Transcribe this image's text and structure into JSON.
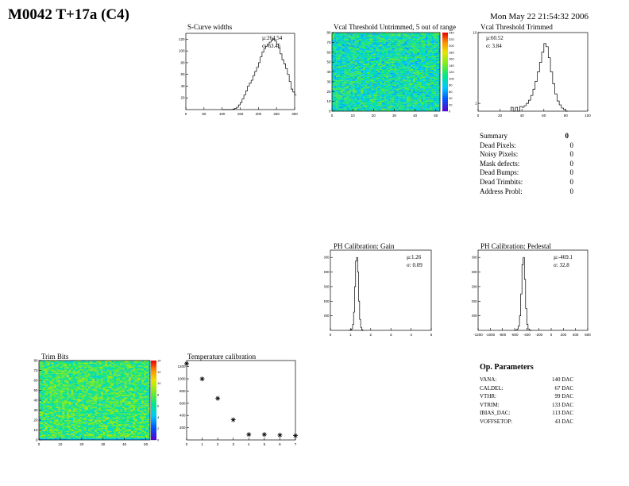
{
  "page": {
    "title": "M0042 T+17a (C4)",
    "datetime": "Mon May 22 21:54:32 2006"
  },
  "chart_data": [
    {
      "type": "area",
      "id": "scurve",
      "title": "S-Curve widths",
      "stats": {
        "mean": "µ:264.54",
        "sigma": "σ: 63.45"
      },
      "xlim": [
        0,
        300
      ],
      "ylim": [
        0,
        130
      ],
      "xticks": [
        0,
        50,
        100,
        150,
        200,
        250,
        300
      ],
      "yticks": [
        20,
        40,
        60,
        80,
        100,
        120
      ],
      "x": [
        100,
        105,
        110,
        115,
        120,
        125,
        130,
        135,
        140,
        145,
        150,
        155,
        160,
        165,
        170,
        175,
        180,
        185,
        190,
        195,
        200,
        205,
        210,
        215,
        220,
        225,
        230,
        235,
        240,
        245,
        250,
        255,
        260,
        265,
        270,
        275,
        280,
        285,
        290,
        295,
        300
      ],
      "values": [
        0,
        0,
        0,
        0,
        0,
        0,
        1,
        2,
        4,
        8,
        12,
        18,
        25,
        32,
        40,
        45,
        50,
        58,
        65,
        72,
        80,
        90,
        98,
        104,
        108,
        112,
        115,
        118,
        120,
        117,
        112,
        105,
        95,
        85,
        78,
        70,
        60,
        48,
        35,
        30,
        25
      ]
    },
    {
      "type": "heatmap",
      "id": "vcal",
      "title": "Vcal Threshold Untrimmed, 5 out of range",
      "xlim": [
        0,
        52
      ],
      "ylim": [
        0,
        80
      ],
      "xticks": [
        0,
        10,
        20,
        30,
        40,
        50
      ],
      "yticks": [
        0,
        10,
        20,
        30,
        40,
        50,
        60,
        70,
        80
      ],
      "zticks": [
        0,
        20,
        40,
        60,
        80,
        100,
        120,
        140,
        160,
        180,
        200,
        220,
        240
      ],
      "base_level": 100
    },
    {
      "type": "area",
      "id": "vcaltrim",
      "title": "Vcal Threshold Trimmed",
      "stats": {
        "mean": "µ:60.52",
        "sigma": "σ: 3.84"
      },
      "xlim": [
        0,
        100
      ],
      "ylim": [
        0,
        10
      ],
      "xticks": [
        0,
        20,
        40,
        60,
        80,
        100
      ],
      "yticks": [
        1,
        10
      ],
      "x": [
        30,
        32,
        34,
        36,
        38,
        40,
        42,
        44,
        46,
        48,
        50,
        52,
        54,
        56,
        58,
        60,
        62,
        64,
        66,
        68,
        70,
        72,
        74,
        76,
        78,
        80
      ],
      "values": [
        0.5,
        0,
        0.5,
        0,
        0.6,
        0.5,
        0.7,
        1.0,
        1.4,
        2,
        2.8,
        3.8,
        5,
        6.2,
        7.5,
        8.6,
        8.2,
        6.8,
        5,
        3.5,
        2.2,
        1.3,
        0.8,
        0.4,
        0.2,
        0
      ]
    },
    {
      "type": "area",
      "id": "gain",
      "title": "PH Calibration: Gain",
      "stats": {
        "mean": "µ:1.26",
        "sigma": "σ: 0.09"
      },
      "xlim": [
        0,
        5
      ],
      "ylim": [
        0,
        1100
      ],
      "xticks": [
        0,
        1,
        2,
        3,
        4,
        5
      ],
      "yticks": [
        200,
        400,
        600,
        800,
        1000
      ],
      "x": [
        0.9,
        0.95,
        1.0,
        1.05,
        1.1,
        1.15,
        1.2,
        1.25,
        1.3,
        1.35,
        1.4,
        1.45,
        1.5,
        1.55,
        1.6
      ],
      "values": [
        0,
        2,
        5,
        20,
        80,
        250,
        600,
        950,
        1000,
        800,
        400,
        150,
        40,
        10,
        0
      ]
    },
    {
      "type": "area",
      "id": "pedestal",
      "title": "PH Calibration: Pedestal",
      "stats": {
        "mean": "µ:-469.1",
        "sigma": "σ: 32.8"
      },
      "xlim": [
        -1200,
        600
      ],
      "ylim": [
        0,
        1100
      ],
      "xticks": [
        -1200,
        -1000,
        -800,
        -600,
        -400,
        -200,
        0,
        200,
        400,
        600
      ],
      "yticks": [
        200,
        400,
        600,
        800,
        1000
      ],
      "x": [
        -600,
        -580,
        -560,
        -540,
        -520,
        -500,
        -480,
        -460,
        -440,
        -420,
        -400,
        -380,
        -360,
        -340
      ],
      "values": [
        0,
        5,
        20,
        60,
        200,
        500,
        900,
        1000,
        700,
        300,
        80,
        20,
        5,
        0
      ]
    },
    {
      "type": "heatmap",
      "id": "trimbits",
      "title": "Trim Bits",
      "xlim": [
        0,
        52
      ],
      "ylim": [
        0,
        80
      ],
      "xticks": [
        0,
        10,
        20,
        30,
        40,
        50
      ],
      "yticks": [
        0,
        10,
        20,
        30,
        40,
        50,
        60,
        70,
        80
      ],
      "zticks": [
        0,
        2,
        4,
        6,
        8,
        10,
        12,
        14
      ],
      "base_level": 7
    },
    {
      "type": "scatter",
      "id": "temp",
      "title": "Temperature calibration",
      "xlim": [
        0,
        7
      ],
      "ylim": [
        0,
        1300
      ],
      "xticks": [
        0,
        1,
        2,
        3,
        4,
        5,
        6,
        7
      ],
      "yticks": [
        200,
        400,
        600,
        800,
        1000,
        1200
      ],
      "x": [
        0,
        1,
        2,
        3,
        4,
        5,
        6,
        7
      ],
      "values": [
        1250,
        1000,
        680,
        330,
        90,
        90,
        80,
        70
      ]
    }
  ],
  "summary": {
    "title": "Summary",
    "total": "0",
    "rows": [
      {
        "label": "Dead Pixels:",
        "value": "0"
      },
      {
        "label": "Noisy Pixels:",
        "value": "0"
      },
      {
        "label": "Mask defects:",
        "value": "0"
      },
      {
        "label": "Dead Bumps:",
        "value": "0"
      },
      {
        "label": "Dead Trimbits:",
        "value": "0"
      },
      {
        "label": "Address Probl:",
        "value": "0"
      }
    ]
  },
  "op_params": {
    "title": "Op. Parameters",
    "rows": [
      {
        "label": "VANA:",
        "value": "140 DAC"
      },
      {
        "label": "CALDEL:",
        "value": "67 DAC"
      },
      {
        "label": "VTHR:",
        "value": "99 DAC"
      },
      {
        "label": "VTRIM:",
        "value": "133 DAC"
      },
      {
        "label": "IBIAS_DAC:",
        "value": "113 DAC"
      },
      {
        "label": "VOFFSETOP:",
        "value": "43 DAC"
      }
    ]
  }
}
